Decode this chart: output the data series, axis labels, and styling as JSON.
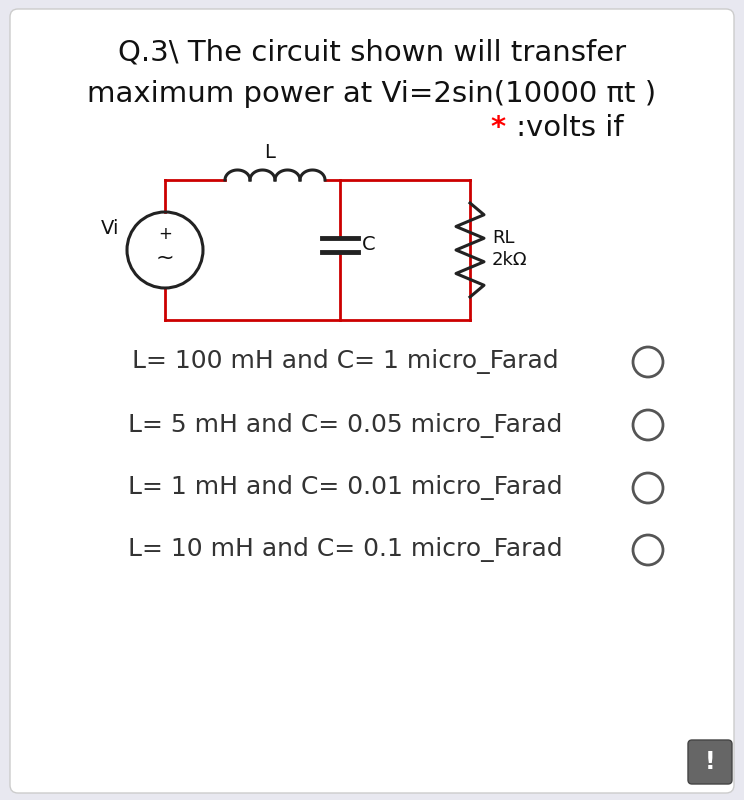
{
  "title_line1": "Q.3\\ The circuit shown will transfer",
  "title_line2": "maximum power at Vi=2sin(10000 πt )",
  "title_line3_star": "*",
  "title_line3_rest": " :volts if",
  "bg_color": "#e8e8f0",
  "card_color": "#ffffff",
  "circuit_color": "#cc0000",
  "component_color": "#222222",
  "options": [
    "L= 100 mH and C= 1 micro_Farad",
    "L= 5 mH and C= 0.05 micro_Farad",
    "L= 1 mH and C= 0.01 micro_Farad",
    "L= 10 mH and C= 0.1 micro_Farad"
  ],
  "title_fontsize": 21,
  "option_fontsize": 18,
  "circuit_lw": 2.0,
  "comp_lw": 2.2
}
